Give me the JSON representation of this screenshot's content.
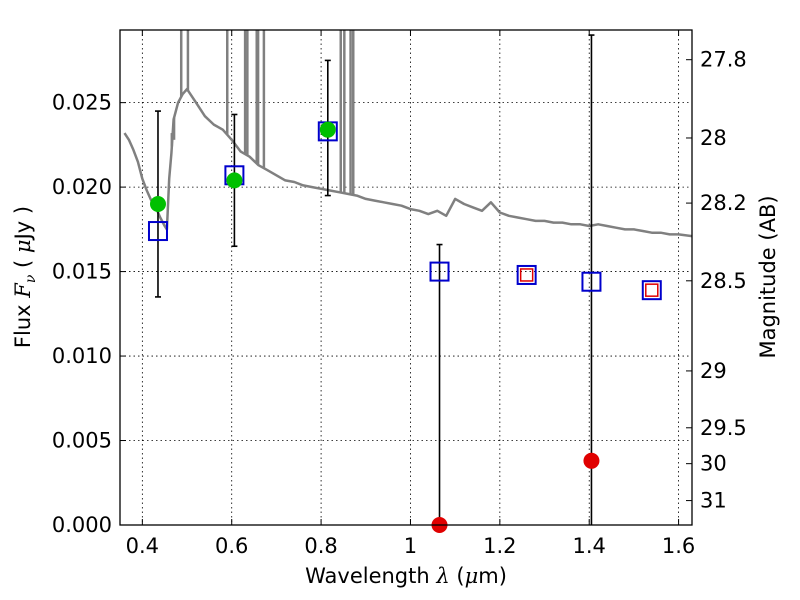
{
  "chart_data": {
    "type": "scatter",
    "xlabel": {
      "text": "Wavelength",
      "symbol": "λ",
      "unit_open": "(",
      "unit_mu": "μ",
      "unit_rest": "m)"
    },
    "ylabel": {
      "text": "Flux",
      "symbol": "F",
      "subscript": "ν",
      "unit_open": "(",
      "unit_mu": "μ",
      "unit_rest": "Jy )"
    },
    "y2label": "Magnitude (AB)",
    "xlim": [
      0.35,
      1.63
    ],
    "ylim": [
      0.0,
      0.0293
    ],
    "grid": true,
    "grid_style": "dotted",
    "xticks": [
      0.4,
      0.6,
      0.8,
      1.0,
      1.2,
      1.4,
      1.6
    ],
    "xtick_labels": [
      "0.4",
      "0.6",
      "0.8",
      "1",
      "1.2",
      "1.4",
      "1.6"
    ],
    "yticks": [
      0.0,
      0.005,
      0.01,
      0.015,
      0.02,
      0.025
    ],
    "ytick_labels": [
      "0.000",
      "0.005",
      "0.010",
      "0.015",
      "0.020",
      "0.025"
    ],
    "right_axis_ticks": [
      {
        "label": "27.8",
        "mag": 27.8
      },
      {
        "label": "28",
        "mag": 28.0
      },
      {
        "label": "28.2",
        "mag": 28.2
      },
      {
        "label": "28.5",
        "mag": 28.5
      },
      {
        "label": "29",
        "mag": 29.0
      },
      {
        "label": "29.5",
        "mag": 29.5
      },
      {
        "label": "30",
        "mag": 30.0
      },
      {
        "label": "31",
        "mag": 31.0
      }
    ],
    "series": [
      {
        "kind": "model_spectrum",
        "color": "#808080",
        "x": [
          0.36,
          0.37,
          0.38,
          0.39,
          0.4,
          0.41,
          0.42,
          0.43,
          0.44,
          0.45,
          0.455,
          0.46,
          0.465,
          0.47,
          0.48,
          0.49,
          0.5,
          0.52,
          0.54,
          0.56,
          0.58,
          0.6,
          0.62,
          0.64,
          0.66,
          0.68,
          0.7,
          0.72,
          0.74,
          0.76,
          0.78,
          0.8,
          0.82,
          0.84,
          0.86,
          0.88,
          0.9,
          0.92,
          0.94,
          0.96,
          0.98,
          1.0,
          1.02,
          1.04,
          1.06,
          1.08,
          1.1,
          1.12,
          1.14,
          1.16,
          1.18,
          1.2,
          1.22,
          1.24,
          1.26,
          1.28,
          1.3,
          1.32,
          1.34,
          1.36,
          1.38,
          1.4,
          1.42,
          1.44,
          1.46,
          1.48,
          1.5,
          1.52,
          1.54,
          1.56,
          1.58,
          1.6,
          1.63
        ],
        "y": [
          0.0232,
          0.0228,
          0.0222,
          0.0215,
          0.0205,
          0.0198,
          0.0192,
          0.0188,
          0.0182,
          0.0177,
          0.0175,
          0.0205,
          0.022,
          0.024,
          0.025,
          0.0255,
          0.0258,
          0.025,
          0.0242,
          0.0237,
          0.0234,
          0.0228,
          0.0221,
          0.0218,
          0.0213,
          0.021,
          0.0207,
          0.0204,
          0.0203,
          0.0201,
          0.02,
          0.0199,
          0.0198,
          0.0197,
          0.0196,
          0.0195,
          0.0193,
          0.0192,
          0.0191,
          0.019,
          0.0189,
          0.0187,
          0.0186,
          0.0184,
          0.0186,
          0.0183,
          0.0193,
          0.019,
          0.0188,
          0.0186,
          0.0191,
          0.0185,
          0.0183,
          0.0182,
          0.0181,
          0.018,
          0.018,
          0.0179,
          0.0179,
          0.0178,
          0.0178,
          0.0177,
          0.0178,
          0.0177,
          0.0176,
          0.0175,
          0.0175,
          0.0174,
          0.0173,
          0.0173,
          0.0172,
          0.0172,
          0.0171
        ],
        "emission_lines": [
          {
            "x": 0.466,
            "top": 0.0232
          },
          {
            "x": 0.471,
            "top": 0.0228
          },
          {
            "x": 0.487,
            "top": 0.0293
          },
          {
            "x": 0.502,
            "top": 0.0293
          },
          {
            "x": 0.59,
            "top": 0.0293
          },
          {
            "x": 0.63,
            "top": 0.0293
          },
          {
            "x": 0.635,
            "top": 0.0293
          },
          {
            "x": 0.656,
            "top": 0.0293
          },
          {
            "x": 0.659,
            "top": 0.0293
          },
          {
            "x": 0.672,
            "top": 0.0293
          },
          {
            "x": 0.844,
            "top": 0.0293
          },
          {
            "x": 0.852,
            "top": 0.0293
          },
          {
            "x": 0.866,
            "top": 0.0293
          },
          {
            "x": 0.872,
            "top": 0.0293
          }
        ]
      },
      {
        "kind": "observed",
        "x": [
          0.435,
          0.606,
          0.815,
          1.065,
          1.405
        ],
        "y": [
          0.019,
          0.0204,
          0.0234,
          0.0,
          0.0038
        ],
        "yerr_low": [
          0.0135,
          0.0165,
          0.0195,
          0.0,
          0.0
        ],
        "yerr_high": [
          0.0245,
          0.0243,
          0.0275,
          0.0166,
          0.029
        ],
        "colors": [
          "#00c000",
          "#00c000",
          "#00c000",
          "#e00000",
          "#e00000"
        ],
        "error_color": "#000000"
      },
      {
        "kind": "model_photometry",
        "color": "#0000cc",
        "x": [
          0.435,
          0.606,
          0.815,
          1.065,
          1.26,
          1.405,
          1.54
        ],
        "y": [
          0.0174,
          0.0207,
          0.0233,
          0.015,
          0.0148,
          0.0144,
          0.0139
        ]
      },
      {
        "kind": "inner_red_squares",
        "color": "#e00000",
        "x": [
          1.26,
          1.54
        ],
        "y": [
          0.0148,
          0.0139
        ]
      }
    ]
  }
}
